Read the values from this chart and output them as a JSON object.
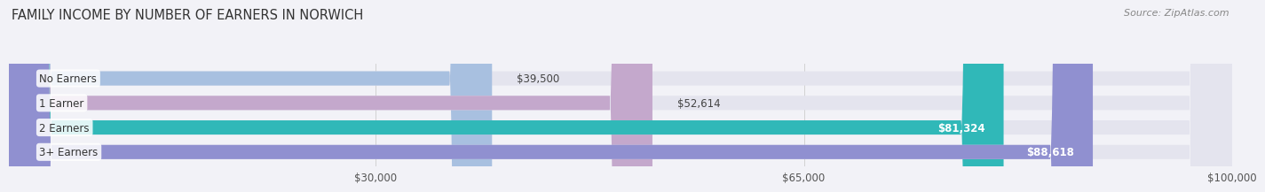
{
  "title": "FAMILY INCOME BY NUMBER OF EARNERS IN NORWICH",
  "source": "Source: ZipAtlas.com",
  "categories": [
    "No Earners",
    "1 Earner",
    "2 Earners",
    "3+ Earners"
  ],
  "values": [
    39500,
    52614,
    81324,
    88618
  ],
  "labels": [
    "$39,500",
    "$52,614",
    "$81,324",
    "$88,618"
  ],
  "bar_colors": [
    "#a8c0e0",
    "#c4a8cc",
    "#30b8b8",
    "#9090d0"
  ],
  "bar_bg_color": "#e4e4ee",
  "xmin": 0,
  "xmax": 100000,
  "xticks": [
    30000,
    65000,
    100000
  ],
  "xtick_labels": [
    "$30,000",
    "$65,000",
    "$100,000"
  ],
  "fig_bg_color": "#f2f2f7",
  "title_fontsize": 10.5,
  "source_fontsize": 8,
  "label_fontsize": 8.5,
  "tick_fontsize": 8.5,
  "bar_height": 0.58,
  "value_threshold": 60000
}
